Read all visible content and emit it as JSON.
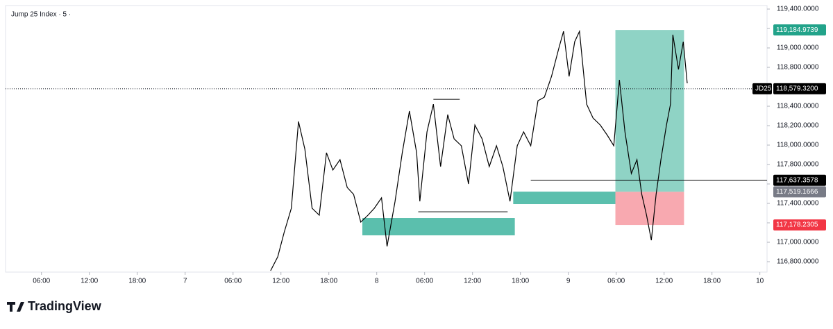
{
  "chart_data": {
    "type": "line",
    "title": "Jump 25 Index · 5 ·",
    "brand": "TradingView",
    "color": "#000000",
    "x": [
      34.7,
      35.6,
      36.4,
      37.3,
      38.2,
      39.0,
      39.9,
      40.8,
      41.7,
      42.5,
      43.4,
      44.3,
      45.1,
      46.0,
      46.9,
      47.7,
      48.6,
      49.3,
      50.3,
      51.2,
      52.1,
      53.0,
      53.4,
      54.3,
      55.1,
      56.0,
      56.9,
      57.7,
      58.6,
      59.5,
      60.3,
      61.2,
      62.1,
      63.0,
      63.8,
      64.7,
      65.6,
      66.4,
      67.3,
      68.2,
      69.0,
      69.9,
      70.8,
      71.4,
      72.1,
      72.8,
      73.4,
      74.3,
      75.1,
      76.0,
      76.9,
      77.7,
      78.4,
      79.1,
      79.9,
      80.6,
      81.2,
      81.8,
      82.4,
      83.0,
      83.6,
      84.3,
      84.8,
      85.1,
      85.8,
      86.4,
      86.9
    ],
    "values": [
      116707,
      116850,
      117100,
      117350,
      118243,
      117957,
      117350,
      117279,
      117921,
      117743,
      117850,
      117564,
      117493,
      117207,
      117279,
      117350,
      117457,
      116957,
      117421,
      117921,
      118350,
      117921,
      117421,
      118136,
      118421,
      117779,
      118314,
      118064,
      117993,
      117600,
      118207,
      118064,
      117779,
      117993,
      117779,
      117421,
      117993,
      118136,
      117993,
      118457,
      118493,
      118707,
      118993,
      119171,
      118707,
      119064,
      119171,
      118421,
      118279,
      118207,
      118100,
      117993,
      118671,
      118136,
      117707,
      117850,
      117493,
      117279,
      117021,
      117493,
      117850,
      118207,
      118421,
      119136,
      118779,
      119064,
      118636
    ],
    "xlim": [
      1.5,
      96.9
    ],
    "xticks": [
      {
        "value": 6,
        "label": "06:00"
      },
      {
        "value": 12,
        "label": "12:00"
      },
      {
        "value": 18,
        "label": "18:00"
      },
      {
        "value": 24,
        "label": "7"
      },
      {
        "value": 30,
        "label": "06:00"
      },
      {
        "value": 36,
        "label": "12:00"
      },
      {
        "value": 42,
        "label": "18:00"
      },
      {
        "value": 48,
        "label": "8"
      },
      {
        "value": 54,
        "label": "06:00"
      },
      {
        "value": 60,
        "label": "12:00"
      },
      {
        "value": 66,
        "label": "18:00"
      },
      {
        "value": 72,
        "label": "9"
      },
      {
        "value": 78,
        "label": "06:00"
      },
      {
        "value": 84,
        "label": "12:00"
      },
      {
        "value": 90,
        "label": "18:00"
      },
      {
        "value": 96,
        "label": "10"
      }
    ],
    "ylim": [
      116693,
      119436
    ],
    "yticks": [
      {
        "value": 116800,
        "label": "116,800.0000"
      },
      {
        "value": 117000,
        "label": "117,000.0000"
      },
      {
        "value": 117200,
        "label": "117,200.0000"
      },
      {
        "value": 117400,
        "label": "117,400.0000"
      },
      {
        "value": 117600,
        "label": "117,600.0000"
      },
      {
        "value": 117800,
        "label": "117,800.0000"
      },
      {
        "value": 118000,
        "label": "118,000.0000"
      },
      {
        "value": 118200,
        "label": "118,200.0000"
      },
      {
        "value": 118400,
        "label": "118,400.0000"
      },
      {
        "value": 118600,
        "label": "118,600.0000"
      },
      {
        "value": 118800,
        "label": "118,800.0000"
      },
      {
        "value": 119000,
        "label": "119,000.0000"
      },
      {
        "value": 119200,
        "label": "119,200.0000"
      },
      {
        "value": 119400,
        "label": "119,400.0000"
      }
    ],
    "zones": [
      {
        "x": [
          46.2,
          65.3
        ],
        "y": [
          117071,
          117250
        ],
        "color": "#5bbfad"
      },
      {
        "x": [
          65.1,
          77.9
        ],
        "y": [
          117393,
          117521
        ],
        "color": "#5bbfad"
      },
      {
        "x": [
          77.9,
          86.5
        ],
        "y": [
          117519.1666,
          119184.9739
        ],
        "color": "#8fd3c5"
      },
      {
        "x": [
          77.9,
          86.5
        ],
        "y": [
          117178.2305,
          117519.1666
        ],
        "color": "#f8a9b0"
      }
    ],
    "lines": [
      {
        "x": [
          55.1,
          58.4
        ],
        "y": 118471
      },
      {
        "x": [
          53.2,
          64.4
        ],
        "y": 117314
      },
      {
        "x": [
          67.3,
          96.9
        ],
        "y": 117637.3578
      }
    ],
    "symbol": "JD25",
    "current_price": {
      "value": 118579.32,
      "label": "118,579.3200",
      "color": "#000000"
    },
    "price_labels": [
      {
        "value": 119184.9739,
        "label": "119,184.9739",
        "color": "#22a38a"
      },
      {
        "value": 117637.3578,
        "label": "117,637.3578",
        "color": "#000000"
      },
      {
        "value": 117519.1666,
        "label": "117,519.1666",
        "color": "#787b86"
      },
      {
        "value": 117178.2305,
        "label": "117,178.2305",
        "color": "#f23645"
      }
    ]
  }
}
